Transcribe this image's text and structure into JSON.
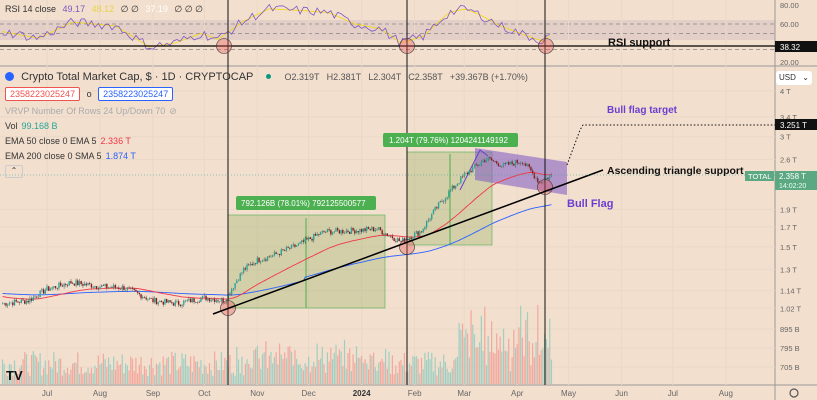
{
  "chart_data": {
    "type": "candlestick",
    "title": "Crypto Total Market Cap, $ · 1D · CRYPTOCAP",
    "symbol": "TOTAL",
    "ohlc": {
      "open": "O2.319T",
      "high": "H2.381T",
      "low": "L2.304T",
      "close": "C2.358T",
      "change": "+39.367B (+1.70%)"
    },
    "price_scale": "log",
    "price_ticks": [
      "4 T",
      "3.4 T",
      "3 T",
      "2.6 T",
      "1.9 T",
      "1.7 T",
      "1.5 T",
      "1.3 T",
      "1.14 T",
      "1.02 T",
      "895 B",
      "795 B",
      "705 B"
    ],
    "price_tick_values": [
      4,
      3.4,
      3,
      2.6,
      1.9,
      1.7,
      1.5,
      1.3,
      1.14,
      1.02,
      0.895,
      0.795,
      0.705
    ],
    "time_ticks": [
      "Jul",
      "Aug",
      "Sep",
      "Oct",
      "Nov",
      "Dec",
      "2024",
      "Feb",
      "Mar",
      "Apr",
      "May",
      "Jun",
      "Jul",
      "Aug"
    ],
    "time_tick_days": [
      0,
      31,
      62,
      92,
      123,
      153,
      184,
      215,
      244,
      275,
      305,
      336,
      366,
      397
    ],
    "series_days": [
      -26,
      -11,
      0,
      14,
      31,
      45,
      62,
      76,
      92,
      104,
      115,
      123,
      132,
      147,
      162,
      177,
      193,
      207,
      219,
      229,
      244,
      257,
      267,
      278,
      288,
      295
    ],
    "series_close_T": [
      1.05,
      1.07,
      1.15,
      1.2,
      1.17,
      1.16,
      1.07,
      1.05,
      1.09,
      1.07,
      1.3,
      1.38,
      1.42,
      1.52,
      1.65,
      1.66,
      1.68,
      1.55,
      1.66,
      1.95,
      2.35,
      2.62,
      2.5,
      2.58,
      2.25,
      2.358
    ],
    "current_price": "2.358 T",
    "countdown": "14:02:20",
    "target_price": "3.251 T",
    "rsi": {
      "label": "RSI 14 close",
      "value": "49.17",
      "ma_value": "48.12",
      "extra": "∅ ∅",
      "value3": "37.19",
      "extra2": "∅ ∅ ∅",
      "ticks": [
        "80.00",
        "60.00",
        "20.00"
      ],
      "support_value": "38.32",
      "days": [
        -26,
        -5,
        15,
        40,
        60,
        75,
        90,
        100,
        115,
        130,
        150,
        165,
        180,
        195,
        207,
        220,
        235,
        245,
        255,
        265,
        280,
        290,
        295
      ],
      "values": [
        52,
        45,
        62,
        58,
        36,
        40,
        50,
        44,
        63,
        76,
        74,
        72,
        60,
        55,
        40,
        47,
        72,
        76,
        68,
        58,
        48,
        42,
        49
      ]
    },
    "legend": {
      "vol_label": "Vol",
      "vol_value": "99.168 B",
      "ema50_label": "EMA 50 close 0 EMA 5",
      "ema50_value": "2.336 T",
      "ema200_label": "EMA 200 close 0 SMA 5",
      "ema200_value": "1.874 T",
      "vrvp": "VRVP Number Of Rows 24 Up/Down 70",
      "input1": "2358223025247",
      "input_sep": "o",
      "input2": "2358223025247"
    },
    "annotations": {
      "measure1": "792.126B (78.01%) 792125500577",
      "measure2": "1.204T (79.76%) 1204241149192",
      "rsi_support": "RSI support",
      "bull_flag_target": "Bull flag target",
      "ascending_support": "Ascending triangle support",
      "bull_flag": "Bull Flag"
    },
    "currency": "USD",
    "colors": {
      "up": "#26a69a",
      "down": "#ef5350",
      "ema50": "#f23645",
      "ema200": "#2962ff",
      "rsi": "#7e57c2",
      "rsi_ma": "#f5d90a",
      "measure": "#4caf50",
      "flag": "#7e57c2"
    }
  }
}
